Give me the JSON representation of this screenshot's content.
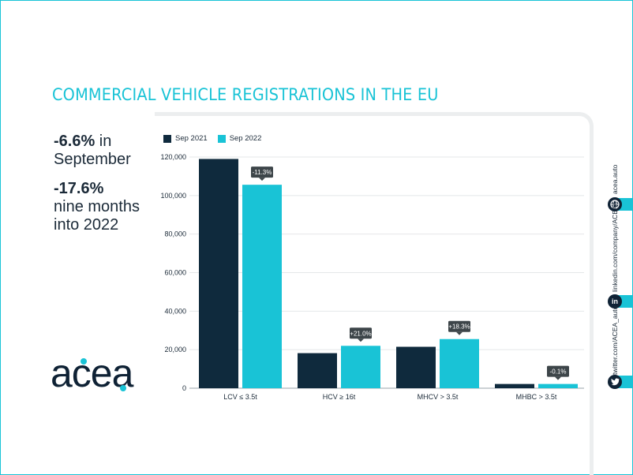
{
  "title": "COMMERCIAL VEHICLE REGISTRATIONS IN THE EU",
  "stats": [
    {
      "value": "-6.6%",
      "text": " in September"
    },
    {
      "value": "-17.6%",
      "text": "nine months into 2022"
    }
  ],
  "logo": "acea",
  "social": {
    "web": "acea.auto",
    "linkedin": "linkedin.com/company/ACEA/",
    "twitter": "twitter.com/ACEA_auto"
  },
  "colors": {
    "sep2021": "#0f2a3d",
    "sep2022": "#19c3d6",
    "accent": "#19c3d6"
  },
  "chart_data": {
    "type": "bar",
    "categories": [
      "LCV ≤ 3.5t",
      "HCV ≥ 16t",
      "MHCV > 3.5t",
      "MHBC > 3.5t"
    ],
    "series": [
      {
        "name": "Sep 2021",
        "values": [
          119000,
          18200,
          21500,
          2200
        ]
      },
      {
        "name": "Sep 2022",
        "values": [
          105600,
          22000,
          25500,
          2200
        ]
      }
    ],
    "change_labels": [
      "-11.3%",
      "+21.0%",
      "+18.3%",
      "-0.1%"
    ],
    "ylim": [
      0,
      120000
    ],
    "yticks": [
      0,
      20000,
      40000,
      60000,
      80000,
      100000,
      120000
    ],
    "ytick_labels": [
      "0",
      "20,000",
      "40,000",
      "60,000",
      "80,000",
      "100,000",
      "120,000"
    ],
    "grid": true,
    "legend": "top-left"
  }
}
